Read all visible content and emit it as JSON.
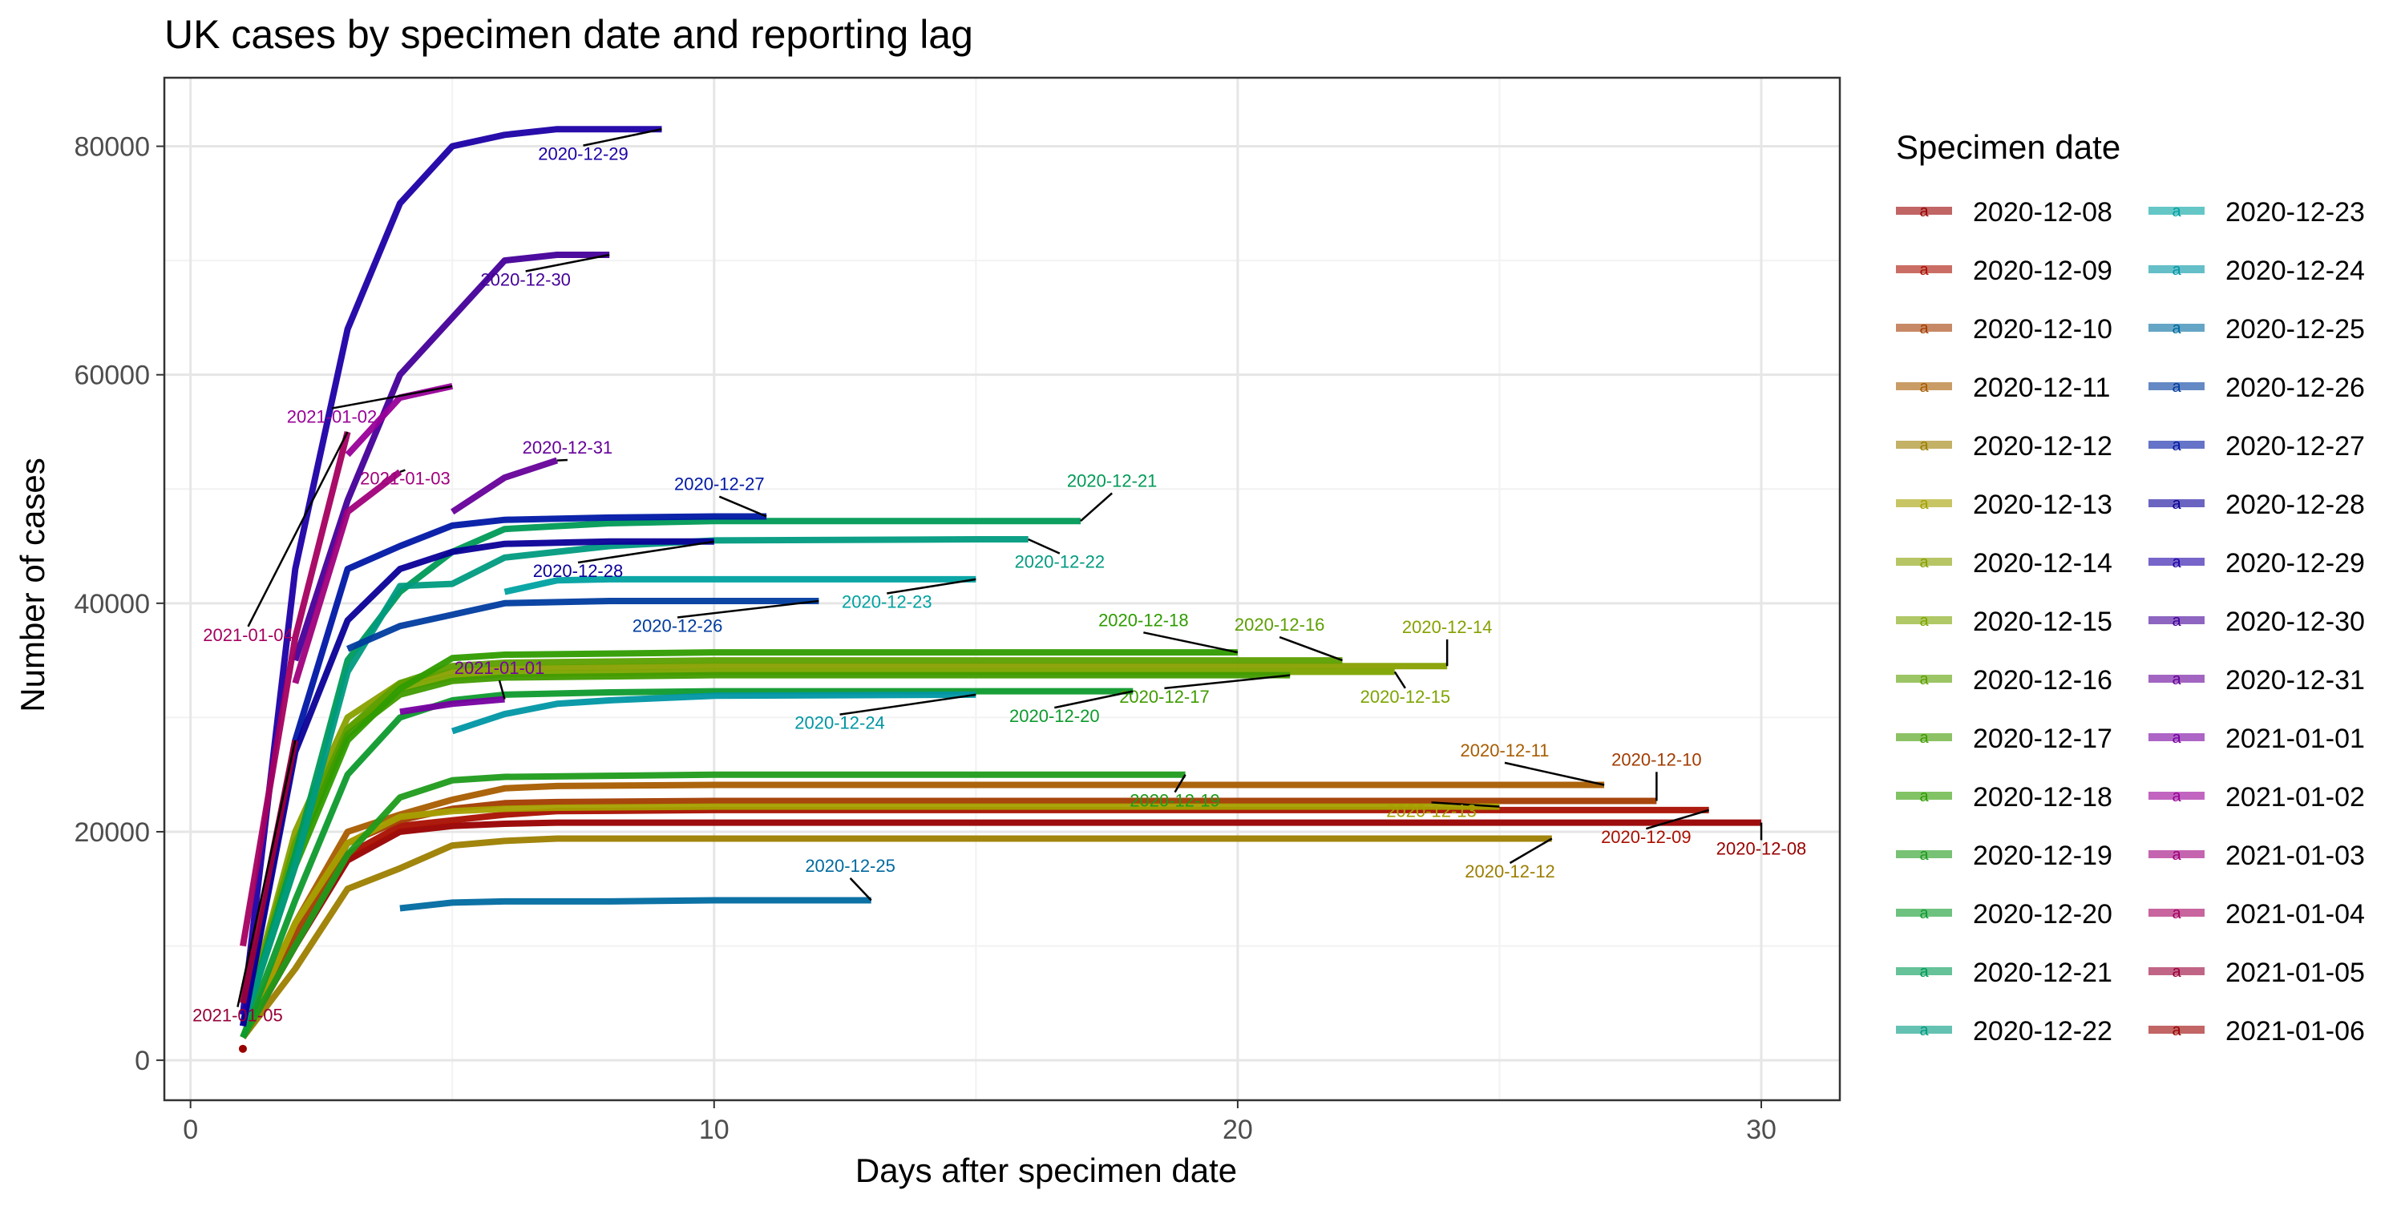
{
  "chart_data": {
    "type": "line",
    "title": "UK cases by specimen date and reporting lag",
    "xlabel": "Days after specimen date",
    "ylabel": "Number of cases",
    "xlim": [
      -0.5,
      31.5
    ],
    "ylim": [
      -3500,
      86000
    ],
    "x_ticks": [
      0,
      10,
      20,
      30
    ],
    "y_ticks": [
      0,
      20000,
      40000,
      60000,
      80000
    ],
    "grid": true,
    "legend_title": "Specimen date",
    "legend_position": "right",
    "series": [
      {
        "name": "2020-12-08",
        "color": "#990000",
        "x": [
          1,
          2,
          3,
          4,
          5,
          6,
          7,
          8,
          10,
          15,
          20,
          25,
          30
        ],
        "y": [
          2000,
          10000,
          17500,
          20000,
          20500,
          20700,
          20800,
          20800,
          20800,
          20800,
          20800,
          20800,
          20800
        ],
        "label": {
          "x": 30,
          "y": 18000
        }
      },
      {
        "name": "2020-12-09",
        "color": "#a80f00",
        "x": [
          1,
          2,
          3,
          4,
          5,
          6,
          7,
          10,
          15,
          20,
          25,
          29
        ],
        "y": [
          2000,
          10000,
          18000,
          20500,
          21000,
          21500,
          21800,
          21900,
          21900,
          21900,
          21900,
          21900
        ],
        "label": {
          "x": 27.8,
          "y": 19000
        }
      },
      {
        "name": "2020-12-10",
        "color": "#a23c00",
        "x": [
          1,
          2,
          3,
          4,
          5,
          6,
          7,
          10,
          15,
          20,
          25,
          28
        ],
        "y": [
          2000,
          11000,
          19000,
          21000,
          22000,
          22500,
          22600,
          22700,
          22700,
          22700,
          22700,
          22700
        ],
        "label": {
          "x": 28,
          "y": 25800
        }
      },
      {
        "name": "2020-12-11",
        "color": "#a85c00",
        "x": [
          1,
          2,
          3,
          4,
          5,
          6,
          7,
          10,
          15,
          20,
          25,
          27
        ],
        "y": [
          2000,
          12000,
          20000,
          21500,
          22800,
          23800,
          24000,
          24100,
          24100,
          24100,
          24100,
          24100
        ],
        "label": {
          "x": 25.1,
          "y": 26600
        }
      },
      {
        "name": "2020-12-12",
        "color": "#9c7e00",
        "x": [
          1,
          2,
          3,
          4,
          5,
          6,
          7,
          10,
          15,
          20,
          26
        ],
        "y": [
          2000,
          8000,
          15000,
          16800,
          18800,
          19200,
          19400,
          19400,
          19400,
          19400,
          19400
        ],
        "label": {
          "x": 25.2,
          "y": 16000
        }
      },
      {
        "name": "2020-12-13",
        "color": "#a5a000",
        "x": [
          1,
          2,
          3,
          4,
          5,
          6,
          7,
          10,
          15,
          20,
          25
        ],
        "y": [
          2000,
          12000,
          19000,
          21300,
          21800,
          22000,
          22100,
          22200,
          22200,
          22200,
          22200
        ],
        "label": {
          "x": 23.7,
          "y": 21300
        }
      },
      {
        "name": "2020-12-14",
        "color": "#88a000",
        "x": [
          1,
          2,
          3,
          4,
          5,
          6,
          8,
          10,
          15,
          20,
          24
        ],
        "y": [
          3000,
          20000,
          30000,
          33000,
          34000,
          34300,
          34400,
          34500,
          34500,
          34500,
          34500
        ],
        "label": {
          "x": 24,
          "y": 37400
        }
      },
      {
        "name": "2020-12-15",
        "color": "#7da400",
        "x": [
          1,
          2,
          3,
          4,
          5,
          6,
          8,
          10,
          15,
          20,
          23
        ],
        "y": [
          3000,
          19000,
          29000,
          32500,
          33500,
          33800,
          33900,
          34000,
          34000,
          34000,
          34000
        ],
        "label": {
          "x": 23.2,
          "y": 31300
        }
      },
      {
        "name": "2020-12-16",
        "color": "#5c9f00",
        "x": [
          1,
          2,
          3,
          4,
          5,
          6,
          8,
          10,
          15,
          20,
          22
        ],
        "y": [
          3000,
          19000,
          29000,
          33000,
          34500,
          34800,
          34900,
          35000,
          35000,
          35000,
          35000
        ],
        "label": {
          "x": 20.8,
          "y": 37600
        }
      },
      {
        "name": "2020-12-17",
        "color": "#409b00",
        "x": [
          1,
          2,
          3,
          4,
          5,
          6,
          8,
          10,
          15,
          20,
          21
        ],
        "y": [
          3000,
          18000,
          28500,
          32000,
          33200,
          33500,
          33600,
          33700,
          33700,
          33700,
          33700
        ],
        "label": {
          "x": 18.6,
          "y": 31300
        }
      },
      {
        "name": "2020-12-18",
        "color": "#2f9c00",
        "x": [
          1,
          2,
          3,
          4,
          5,
          6,
          8,
          10,
          15,
          20
        ],
        "y": [
          3000,
          17000,
          28000,
          32500,
          35200,
          35500,
          35600,
          35700,
          35700,
          35700
        ],
        "label": {
          "x": 18.2,
          "y": 38000
        }
      },
      {
        "name": "2020-12-19",
        "color": "#1f9b1b",
        "x": [
          1,
          2,
          3,
          4,
          5,
          6,
          8,
          10,
          15,
          19
        ],
        "y": [
          2000,
          10000,
          18000,
          23000,
          24500,
          24800,
          24900,
          25000,
          25000,
          25000
        ],
        "label": {
          "x": 18.8,
          "y": 22200
        }
      },
      {
        "name": "2020-12-20",
        "color": "#0e9a2d",
        "x": [
          1,
          2,
          3,
          4,
          5,
          6,
          8,
          10,
          15,
          18
        ],
        "y": [
          2000,
          14000,
          25000,
          30000,
          31500,
          32000,
          32200,
          32300,
          32300,
          32300
        ],
        "label": {
          "x": 16.5,
          "y": 29600
        }
      },
      {
        "name": "2020-12-21",
        "color": "#009a56",
        "x": [
          1,
          2,
          3,
          4,
          5,
          6,
          8,
          10,
          15,
          17
        ],
        "y": [
          3000,
          18000,
          35000,
          41000,
          44500,
          46500,
          47000,
          47200,
          47200,
          47200
        ],
        "label": {
          "x": 17.6,
          "y": 50200
        }
      },
      {
        "name": "2020-12-22",
        "color": "#009b80",
        "x": [
          1,
          2,
          3,
          4,
          5,
          6,
          8,
          10,
          15,
          16
        ],
        "y": [
          3000,
          17000,
          34000,
          41500,
          41700,
          44000,
          45000,
          45500,
          45600,
          45600
        ],
        "label": {
          "x": 16.6,
          "y": 43100
        }
      },
      {
        "name": "2020-12-23",
        "color": "#00a1a1",
        "x": [
          6,
          7,
          8,
          10,
          15
        ],
        "y": [
          41000,
          42000,
          42100,
          42100,
          42100
        ],
        "label": {
          "x": 13.3,
          "y": 39600
        }
      },
      {
        "name": "2020-12-24",
        "color": "#0096a4",
        "x": [
          5,
          6,
          7,
          8,
          10,
          15
        ],
        "y": [
          28800,
          30300,
          31200,
          31500,
          31900,
          32000
        ],
        "label": {
          "x": 12.4,
          "y": 29000
        }
      },
      {
        "name": "2020-12-25",
        "color": "#006aa0",
        "x": [
          4,
          5,
          6,
          8,
          10,
          13
        ],
        "y": [
          13300,
          13800,
          13900,
          13900,
          14000,
          14000
        ],
        "label": {
          "x": 12.6,
          "y": 16500
        }
      },
      {
        "name": "2020-12-26",
        "color": "#003c9f",
        "x": [
          3,
          4,
          5,
          6,
          8,
          10,
          12
        ],
        "y": [
          36000,
          38000,
          39000,
          40000,
          40200,
          40200,
          40200
        ],
        "label": {
          "x": 9.3,
          "y": 37500
        }
      },
      {
        "name": "2020-12-27",
        "color": "#0018a5",
        "x": [
          1,
          2,
          3,
          4,
          5,
          6,
          8,
          10,
          11
        ],
        "y": [
          3000,
          28000,
          43000,
          45000,
          46800,
          47300,
          47500,
          47600,
          47600
        ],
        "label": {
          "x": 10.1,
          "y": 49900
        }
      },
      {
        "name": "2020-12-28",
        "color": "#0a0098",
        "x": [
          1,
          2,
          3,
          4,
          5,
          6,
          8,
          10
        ],
        "y": [
          3000,
          27000,
          38500,
          43000,
          44500,
          45200,
          45400,
          45400
        ],
        "label": {
          "x": 7.4,
          "y": 42300
        }
      },
      {
        "name": "2020-12-29",
        "color": "#1e00a6",
        "x": [
          1,
          2,
          3,
          4,
          5,
          6,
          7,
          8,
          9
        ],
        "y": [
          4000,
          43000,
          64000,
          75000,
          80000,
          81000,
          81500,
          81500,
          81500
        ],
        "label": {
          "x": 7.5,
          "y": 78800
        }
      },
      {
        "name": "2020-12-30",
        "color": "#440099",
        "x": [
          2,
          3,
          4,
          5,
          6,
          7,
          8
        ],
        "y": [
          35000,
          49000,
          60000,
          65000,
          70000,
          70500,
          70500
        ],
        "label": {
          "x": 6.4,
          "y": 67800
        }
      },
      {
        "name": "2020-12-31",
        "color": "#660099",
        "x": [
          5,
          6,
          7
        ],
        "y": [
          48000,
          51000,
          52500
        ],
        "label": {
          "x": 7.2,
          "y": 53100
        }
      },
      {
        "name": "2021-01-01",
        "color": "#7700a1",
        "x": [
          4,
          5,
          6
        ],
        "y": [
          30500,
          31200,
          31600
        ],
        "label": {
          "x": 5.9,
          "y": 33800
        }
      },
      {
        "name": "2021-01-02",
        "color": "#990099",
        "x": [
          3,
          4,
          5
        ],
        "y": [
          53000,
          58000,
          59000
        ],
        "label": {
          "x": 2.7,
          "y": 55800
        }
      },
      {
        "name": "2021-01-03",
        "color": "#a0007c",
        "x": [
          2,
          3,
          4
        ],
        "y": [
          33000,
          48000,
          51500
        ],
        "label": {
          "x": 4.1,
          "y": 50400
        }
      },
      {
        "name": "2021-01-04",
        "color": "#a50060",
        "x": [
          1,
          2,
          3
        ],
        "y": [
          10000,
          37000,
          55000
        ],
        "label": {
          "x": 1.1,
          "y": 36700
        }
      },
      {
        "name": "2021-01-05",
        "color": "#990039",
        "x": [
          1,
          2
        ],
        "y": [
          5000,
          28000
        ],
        "label": {
          "x": 0.9,
          "y": 3400
        }
      },
      {
        "name": "2021-01-06",
        "color": "#990000",
        "x": [
          1
        ],
        "y": [
          1000
        ],
        "label": null
      }
    ]
  }
}
